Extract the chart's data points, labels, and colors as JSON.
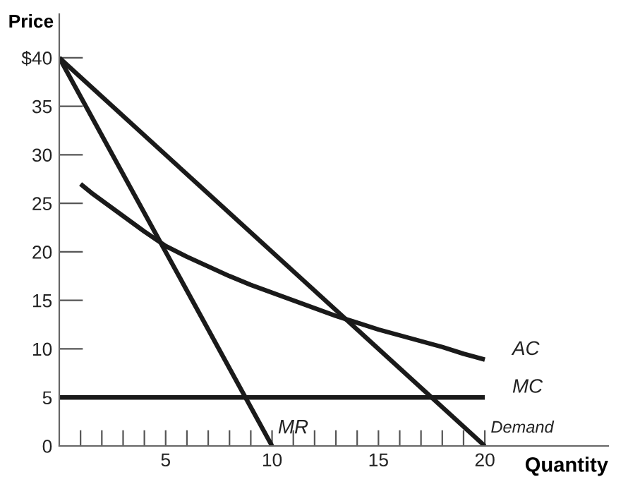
{
  "chart_data": {
    "type": "line",
    "xlabel": "Quantity",
    "ylabel": "Price",
    "xlim": [
      0,
      25.8
    ],
    "ylim": [
      0,
      44.5
    ],
    "xticks": [
      {
        "value": 1,
        "label": null
      },
      {
        "value": 2,
        "label": null
      },
      {
        "value": 3,
        "label": null
      },
      {
        "value": 4,
        "label": null
      },
      5,
      {
        "value": 6,
        "label": null
      },
      {
        "value": 7,
        "label": null
      },
      {
        "value": 8,
        "label": null
      },
      {
        "value": 9,
        "label": null
      },
      10,
      {
        "value": 11,
        "label": null
      },
      {
        "value": 12,
        "label": null
      },
      {
        "value": 13,
        "label": null
      },
      {
        "value": 14,
        "label": null
      },
      15,
      {
        "value": 16,
        "label": null
      },
      {
        "value": 17,
        "label": null
      },
      {
        "value": 18,
        "label": null
      },
      {
        "value": 19,
        "label": null
      },
      20
    ],
    "yticks": [
      0,
      5,
      10,
      15,
      20,
      25,
      30,
      35,
      {
        "value": 40,
        "label": "$40"
      }
    ],
    "grid": false,
    "legend": false,
    "marker": "none",
    "line_style": "solid",
    "series": [
      {
        "name": "Demand",
        "color": "#1a1a1a",
        "x": [
          0,
          20
        ],
        "values": [
          40,
          0
        ]
      },
      {
        "name": "MR",
        "color": "#1a1a1a",
        "x": [
          0,
          10
        ],
        "values": [
          40,
          0
        ]
      },
      {
        "name": "MC",
        "color": "#1a1a1a",
        "x": [
          0,
          20
        ],
        "values": [
          5,
          5
        ]
      },
      {
        "name": "AC",
        "color": "#1a1a1a",
        "x": [
          1,
          1.5,
          2,
          3,
          4,
          5,
          6,
          7,
          8,
          9,
          10,
          11,
          12,
          13,
          14,
          15,
          16,
          17,
          18,
          19,
          20
        ],
        "values": [
          27,
          26.1,
          25.3,
          23.7,
          22.1,
          20.6,
          19.5,
          18.5,
          17.5,
          16.6,
          15.8,
          15,
          14.2,
          13.4,
          12.7,
          12,
          11.4,
          10.8,
          10.2,
          9.5,
          8.9
        ]
      }
    ]
  }
}
